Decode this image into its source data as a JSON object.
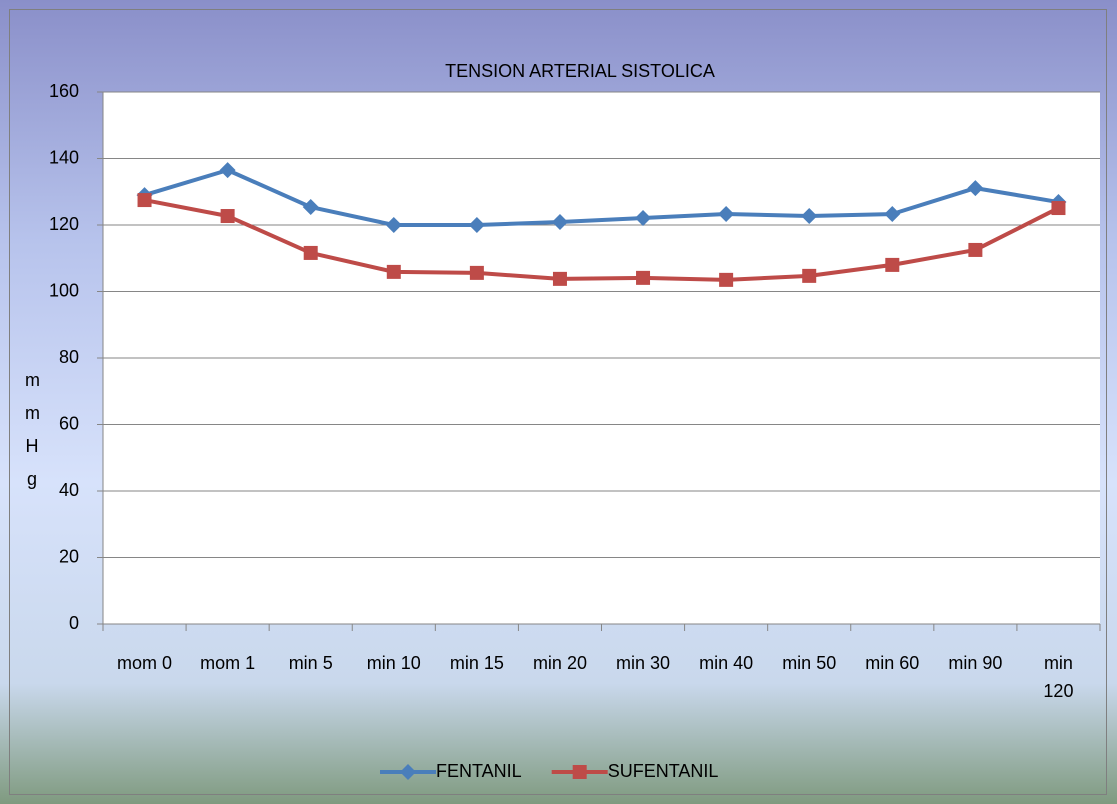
{
  "chart_data": {
    "type": "line",
    "title": "TENSION ARTERIAL SISTOLICA",
    "y_label": "mmHg",
    "categories": [
      "mom 0",
      "mom 1",
      "min 5",
      "min 10",
      "min 15",
      "min 20",
      "min 30",
      "min 40",
      "min 50",
      "min 60",
      "min 90",
      "min 120"
    ],
    "series": [
      {
        "name": "FENTANIL",
        "color": "#4a7ebb",
        "marker": "diamond",
        "values": [
          129,
          136.5,
          125.4,
          120,
          120,
          120.9,
          122.1,
          123.3,
          122.7,
          123.3,
          131.1,
          126.9
        ]
      },
      {
        "name": "SUFENTANIL",
        "color": "#be4b48",
        "marker": "square",
        "values": [
          127.5,
          122.7,
          111.6,
          105.9,
          105.6,
          103.8,
          104.1,
          103.5,
          104.7,
          108,
          112.5,
          125.1
        ]
      }
    ],
    "ylim": [
      0,
      160
    ],
    "yticks": [
      0,
      20,
      40,
      60,
      80,
      100,
      120,
      140,
      160
    ],
    "grid": true,
    "legend": "bottom"
  }
}
